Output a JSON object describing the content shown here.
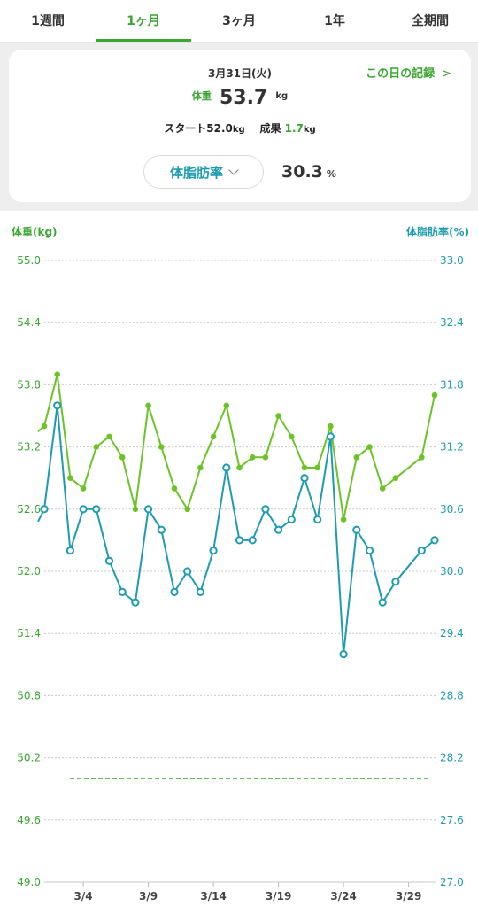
{
  "tabs": [
    {
      "label": "1週間",
      "active": false
    },
    {
      "label": "1ヶ月",
      "active": true
    },
    {
      "label": "3ヶ月",
      "active": false
    },
    {
      "label": "1年",
      "active": false
    },
    {
      "label": "全期間",
      "active": false
    }
  ],
  "summary": {
    "date": "3月31日(火)",
    "record_link": "この日の記録",
    "weight_label": "体重",
    "weight_value": "53.7",
    "weight_unit": "kg",
    "start_label": "スタート",
    "start_value": "52.0",
    "start_unit": "kg",
    "result_label": "成果",
    "result_value": "1.7",
    "result_unit": "kg",
    "metric_selector": "体脂肪率",
    "metric_value": "30.3",
    "metric_unit": "%"
  },
  "colors": {
    "weight": "#6cc327",
    "bodyfat": "#1e9bb0",
    "accent": "#3aa630"
  },
  "chart_data": {
    "type": "line",
    "left_axis_title": "体重(kg)",
    "right_axis_title": "体脂肪率(%)",
    "left_ylim": [
      49.0,
      55.0
    ],
    "right_ylim": [
      27.0,
      33.0
    ],
    "left_ticks": [
      "55.0",
      "54.4",
      "53.8",
      "53.2",
      "52.6",
      "52.0",
      "51.4",
      "50.8",
      "50.2",
      "49.6",
      "49.0"
    ],
    "right_ticks": [
      "33.0",
      "32.4",
      "31.8",
      "31.2",
      "30.6",
      "30.0",
      "29.4",
      "28.8",
      "28.2",
      "27.6",
      "27.0"
    ],
    "x_ticks": [
      "3/4",
      "3/9",
      "3/14",
      "3/19",
      "3/24",
      "3/29"
    ],
    "goal_line_kg": 50.0,
    "grid": true,
    "series": [
      {
        "name": "体重",
        "axis": "left",
        "x": [
          "3/1",
          "3/2",
          "3/3",
          "3/4",
          "3/5",
          "3/6",
          "3/7",
          "3/8",
          "3/9",
          "3/10",
          "3/11",
          "3/12",
          "3/13",
          "3/14",
          "3/15",
          "3/16",
          "3/17",
          "3/18",
          "3/19",
          "3/20",
          "3/21",
          "3/22",
          "3/23",
          "3/24",
          "3/25",
          "3/26",
          "3/27",
          "3/28",
          "3/30",
          "3/31"
        ],
        "values": [
          53.4,
          53.9,
          52.9,
          52.8,
          53.2,
          53.3,
          53.1,
          52.6,
          53.6,
          53.2,
          52.8,
          52.6,
          53.0,
          53.3,
          53.6,
          53.0,
          53.1,
          53.1,
          53.5,
          53.3,
          53.0,
          53.0,
          53.4,
          52.5,
          53.1,
          53.2,
          52.8,
          52.9,
          53.1,
          53.7
        ]
      },
      {
        "name": "体脂肪率",
        "axis": "right",
        "x": [
          "3/1",
          "3/2",
          "3/3",
          "3/4",
          "3/5",
          "3/6",
          "3/7",
          "3/8",
          "3/9",
          "3/10",
          "3/11",
          "3/12",
          "3/13",
          "3/14",
          "3/15",
          "3/16",
          "3/17",
          "3/18",
          "3/19",
          "3/20",
          "3/21",
          "3/22",
          "3/23",
          "3/24",
          "3/25",
          "3/26",
          "3/27",
          "3/28",
          "3/30",
          "3/31"
        ],
        "values": [
          30.6,
          31.6,
          30.2,
          30.6,
          30.6,
          30.1,
          29.8,
          29.7,
          30.6,
          30.4,
          29.8,
          30.0,
          29.8,
          30.2,
          31.0,
          30.3,
          30.3,
          30.6,
          30.4,
          30.5,
          30.9,
          30.5,
          31.3,
          29.2,
          30.4,
          30.2,
          29.7,
          29.9,
          30.2,
          30.3
        ]
      }
    ]
  }
}
